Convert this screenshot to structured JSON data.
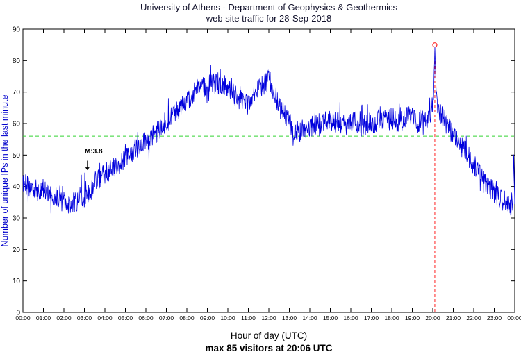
{
  "header": {
    "title": "University of Athens - Department of Geophysics & Geothermics",
    "subtitle": "web site traffic for 28-Sep-2018"
  },
  "footer": {
    "caption": "max 85 visitors at 20:06 UTC"
  },
  "chart_data": {
    "type": "line",
    "title": "University of Athens - Department of Geophysics & Geothermics / web site traffic for 28-Sep-2018",
    "xlabel": "Hour of day (UTC)",
    "ylabel": "Number of unique IPs in the last minute",
    "x_unit": "minutes from 00:00 UTC",
    "xlim_minutes": [
      0,
      1440
    ],
    "ylim": [
      0,
      90
    ],
    "x_tick_labels": [
      "00:00",
      "01:00",
      "02:00",
      "03:00",
      "04:00",
      "05:00",
      "06:00",
      "07:00",
      "08:00",
      "09:00",
      "10:00",
      "11:00",
      "12:00",
      "13:00",
      "14:00",
      "15:00",
      "16:00",
      "17:00",
      "18:00",
      "19:00",
      "20:00",
      "21:00",
      "22:00",
      "23:00",
      "00:00"
    ],
    "y_ticks": [
      0,
      10,
      20,
      30,
      40,
      50,
      60,
      70,
      80,
      90
    ],
    "grid": false,
    "series": [
      {
        "name": "unique IPs in the last minute",
        "color": "#0000dd",
        "noise_amplitude": 3.4,
        "trend_minutes": [
          0,
          20,
          40,
          60,
          90,
          120,
          150,
          180,
          200,
          215,
          240,
          270,
          300,
          330,
          360,
          390,
          420,
          450,
          480,
          510,
          540,
          570,
          600,
          630,
          660,
          675,
          690,
          720,
          735,
          750,
          780,
          795,
          810,
          840,
          870,
          900,
          930,
          960,
          990,
          1020,
          1050,
          1080,
          1095,
          1110,
          1140,
          1155,
          1170,
          1185,
          1195,
          1202,
          1206,
          1210,
          1216,
          1230,
          1245,
          1260,
          1290,
          1320,
          1350,
          1380,
          1410,
          1425,
          1434,
          1437,
          1440
        ],
        "trend_values": [
          41,
          40,
          39,
          39,
          37,
          35,
          35,
          36,
          39,
          42,
          44,
          46,
          49,
          52,
          54,
          57,
          60,
          64,
          67,
          71,
          72,
          73,
          71,
          68,
          66,
          68,
          71,
          74,
          70,
          65,
          61,
          57,
          58,
          59,
          60,
          61,
          60,
          61,
          59,
          60,
          61,
          62,
          60,
          61,
          63,
          60,
          61,
          62,
          63,
          68,
          84,
          70,
          64,
          62,
          59,
          56,
          52,
          47,
          42,
          38,
          35,
          34,
          33,
          50,
          35
        ]
      }
    ],
    "average_line": {
      "value": 56,
      "color": "#30d430",
      "style": "dashed"
    },
    "max_marker": {
      "time": "20:06",
      "minute": 1206,
      "value": 85,
      "color": "#ff2222",
      "vline_style": "dashed"
    },
    "annotation": {
      "label": "M:3.8",
      "time": "03:27",
      "minute": 207,
      "text_y": 50.5,
      "arrow_from": 48.2,
      "arrow_to": 45.2,
      "color": "#000000"
    }
  },
  "colors": {
    "background": "#ffffff",
    "plot_border": "#000000",
    "tick_text": "#000000",
    "ylabel_text": "#0000cc",
    "title_text": "#10102a"
  }
}
